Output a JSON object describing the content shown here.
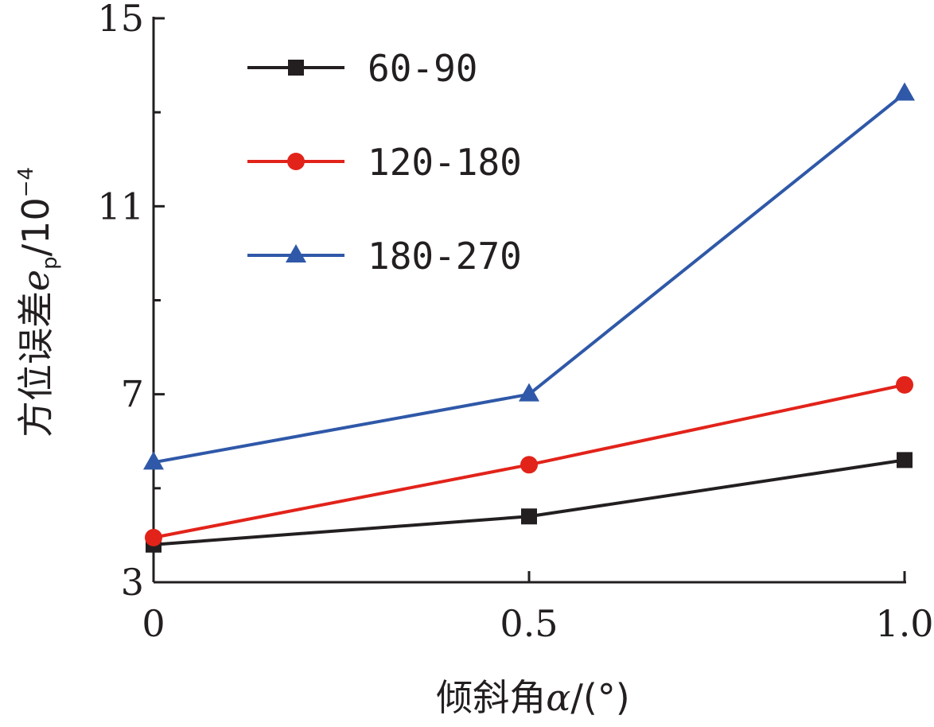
{
  "chart_data": {
    "type": "line",
    "x": [
      0,
      0.5,
      1.0
    ],
    "x_tick_labels": [
      "0",
      "0.5",
      "1.0"
    ],
    "xlim": [
      0,
      1.0
    ],
    "y_ticks": [
      3,
      7,
      11,
      15
    ],
    "ylim": [
      3,
      15
    ],
    "grid": false,
    "legend_position": "top-left",
    "xlabel": {
      "prefix": "倾斜角",
      "symbol": "α",
      "suffix": "/(°)"
    },
    "ylabel": {
      "prefix": "方位误差",
      "symbol": "e",
      "subscript": "p",
      "unit_base": "/10",
      "unit_exponent": "−4"
    },
    "series": [
      {
        "name": "60-90",
        "values": [
          3.8,
          4.4,
          5.6
        ],
        "color": "#231f20",
        "marker": "square"
      },
      {
        "name": "120-180",
        "values": [
          3.95,
          5.5,
          7.2
        ],
        "color": "#e2231a",
        "marker": "circle"
      },
      {
        "name": "180-270",
        "values": [
          5.55,
          7.0,
          13.4
        ],
        "color": "#2f58a8",
        "marker": "triangle"
      }
    ]
  }
}
